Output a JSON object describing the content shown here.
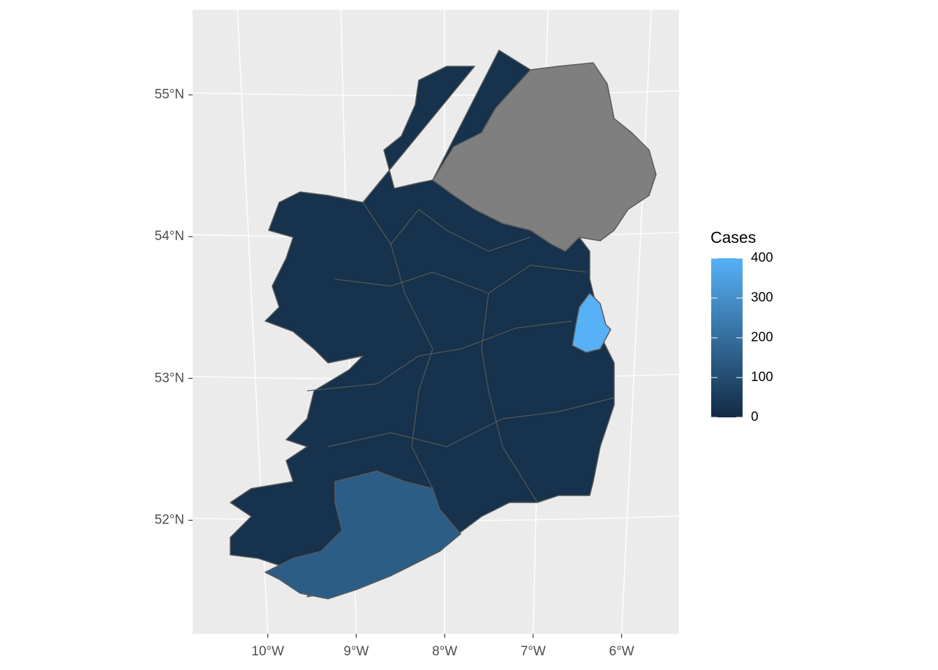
{
  "chart_data": {
    "type": "choropleth",
    "xlim": [
      -10.85,
      -5.35
    ],
    "ylim": [
      51.2,
      55.6
    ],
    "xticks": [
      {
        "value": -10,
        "label": "10°W"
      },
      {
        "value": -9,
        "label": "9°W"
      },
      {
        "value": -8,
        "label": "8°W"
      },
      {
        "value": -7,
        "label": "7°W"
      },
      {
        "value": -6,
        "label": "6°W"
      }
    ],
    "yticks": [
      {
        "value": 52,
        "label": "52°N"
      },
      {
        "value": 53,
        "label": "53°N"
      },
      {
        "value": 54,
        "label": "54°N"
      },
      {
        "value": 55,
        "label": "55°N"
      }
    ],
    "regions": {
      "values": [
        20,
        150,
        400,
        null
      ]
    },
    "legend": {
      "title": "Cases",
      "ticks": [
        0,
        100,
        200,
        300,
        400
      ],
      "limits": [
        0,
        400
      ],
      "low": "#132B43",
      "high": "#56B1F7"
    },
    "na_color": "#7f7f7f",
    "border_color": "#595959",
    "panel_color": "#ebebeb",
    "grid": true
  }
}
